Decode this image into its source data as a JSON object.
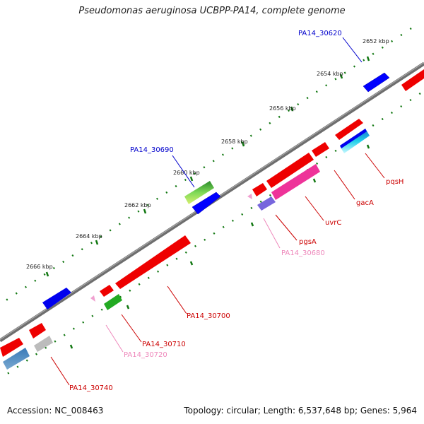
{
  "title": "Pseudomonas aeruginosa UCBPP-PA14, complete genome",
  "footer": {
    "accession": "Accession: NC_008463",
    "stats": "Topology: circular; Length: 6,537,648 bp; Genes: 5,964"
  },
  "ticks": [
    "2652 kbp",
    "2654 kbp",
    "2656 kbp",
    "2658 kbp",
    "2660 kbp",
    "2662 kbp",
    "2664 kbp",
    "2666 kbp"
  ],
  "genes": [
    {
      "label": "PA14_30620",
      "color": "#0000cc"
    },
    {
      "label": "PA14_30690",
      "color": "#0000cc"
    },
    {
      "label": "pqsH",
      "color": "#cc0000"
    },
    {
      "label": "gacA",
      "color": "#cc0000"
    },
    {
      "label": "uvrC",
      "color": "#cc0000"
    },
    {
      "label": "pgsA",
      "color": "#cc0000"
    },
    {
      "label": "PA14_30680",
      "color": "#ee88bb"
    },
    {
      "label": "PA14_30700",
      "color": "#cc0000"
    },
    {
      "label": "PA14_30710",
      "color": "#cc0000"
    },
    {
      "label": "PA14_30720",
      "color": "#ee88bb"
    },
    {
      "label": "PA14_30740",
      "color": "#cc0000"
    }
  ]
}
